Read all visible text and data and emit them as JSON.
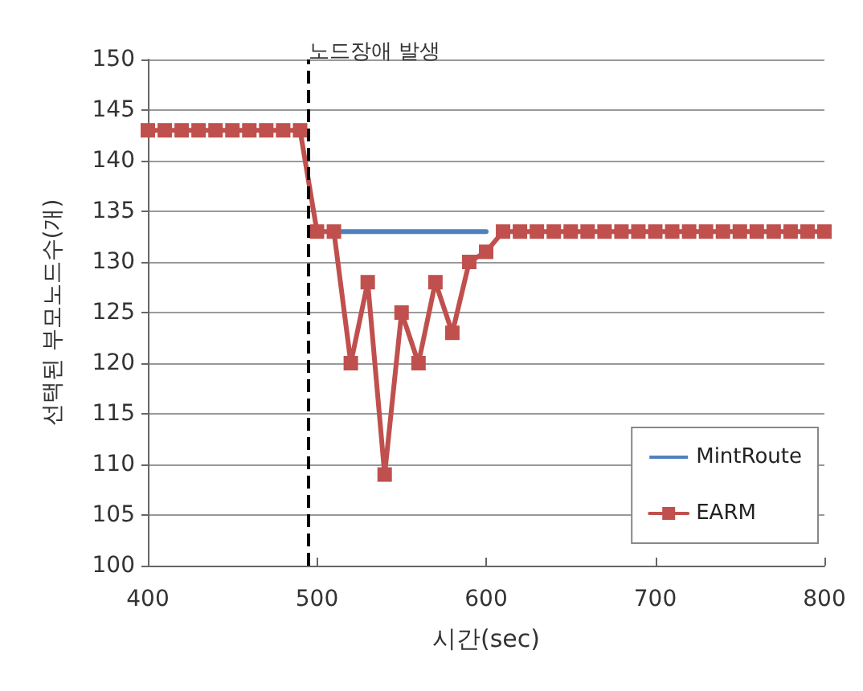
{
  "chart_data": {
    "type": "line",
    "xlabel": "시간(sec)",
    "ylabel": "선택된 부모노드수(개)",
    "xlim": [
      400,
      800
    ],
    "xticks": [
      400,
      500,
      600,
      700,
      800
    ],
    "ylim": [
      100,
      150
    ],
    "yticks": [
      100,
      105,
      110,
      115,
      120,
      125,
      130,
      135,
      140,
      145,
      150
    ],
    "grid": "y",
    "legend": "bottom right",
    "series": [
      {
        "name": "MintRoute",
        "color": "#4f81bd",
        "marker": "none",
        "x": [
          510,
          600
        ],
        "values": [
          133,
          133
        ]
      },
      {
        "name": "EARM",
        "color": "#c0504d",
        "marker": "square",
        "x": [
          400,
          410,
          420,
          430,
          440,
          450,
          460,
          470,
          480,
          490,
          500,
          510,
          520,
          530,
          540,
          550,
          560,
          570,
          580,
          590,
          600,
          610,
          620,
          630,
          640,
          650,
          660,
          670,
          680,
          690,
          700,
          710,
          720,
          730,
          740,
          750,
          760,
          770,
          780,
          790,
          800
        ],
        "values": [
          143,
          143,
          143,
          143,
          143,
          143,
          143,
          143,
          143,
          143,
          133,
          133,
          120,
          128,
          109,
          125,
          120,
          128,
          123,
          130,
          131,
          133,
          133,
          133,
          133,
          133,
          133,
          133,
          133,
          133,
          133,
          133,
          133,
          133,
          133,
          133,
          133,
          133,
          133,
          133,
          133
        ]
      }
    ],
    "ref_lines": [
      {
        "axis": "x",
        "value": 495,
        "label": "노드장애 발생",
        "color": "#000000",
        "line_style": "dashed"
      }
    ]
  }
}
